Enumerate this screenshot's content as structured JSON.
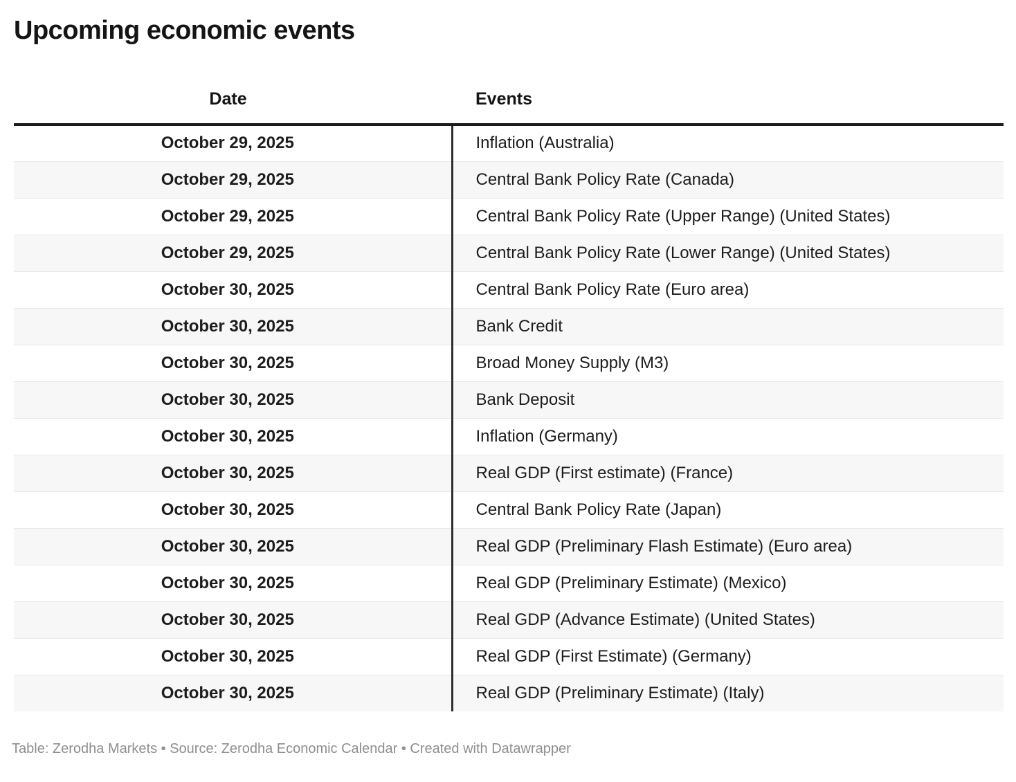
{
  "title": "Upcoming economic events",
  "chart_data": {
    "type": "table",
    "title": "Upcoming economic events",
    "columns": [
      "Date",
      "Events"
    ],
    "rows": [
      [
        "October 29, 2025",
        "Inflation (Australia)"
      ],
      [
        "October 29, 2025",
        "Central Bank Policy Rate (Canada)"
      ],
      [
        "October 29, 2025",
        "Central Bank Policy Rate (Upper Range) (United States)"
      ],
      [
        "October 29, 2025",
        "Central Bank Policy Rate (Lower Range) (United States)"
      ],
      [
        "October 30, 2025",
        "Central Bank Policy Rate (Euro area)"
      ],
      [
        "October 30, 2025",
        "Bank Credit"
      ],
      [
        "October 30, 2025",
        "Broad Money Supply (M3)"
      ],
      [
        "October 30, 2025",
        "Bank Deposit"
      ],
      [
        "October 30, 2025",
        "Inflation (Germany)"
      ],
      [
        "October 30, 2025",
        "Real GDP (First estimate) (France)"
      ],
      [
        "October 30, 2025",
        "Central Bank Policy Rate (Japan)"
      ],
      [
        "October 30, 2025",
        "Real GDP (Preliminary Flash Estimate) (Euro area)"
      ],
      [
        "October 30, 2025",
        "Real GDP (Preliminary Estimate) (Mexico)"
      ],
      [
        "October 30, 2025",
        "Real GDP (Advance Estimate) (United States)"
      ],
      [
        "October 30, 2025",
        "Real GDP (First Estimate) (Germany)"
      ],
      [
        "October 30, 2025",
        "Real GDP (Preliminary Estimate) (Italy)"
      ]
    ],
    "layout": {
      "date_column_align": "center",
      "events_column_align": "left",
      "zebra_striping": true,
      "legend_position": "none"
    }
  },
  "footer": {
    "text": "Table: Zerodha Markets • Source: Zerodha Economic Calendar • Created with Datawrapper"
  },
  "colors": {
    "row_alt_background": "#f7f7f7",
    "header_rule": "#1c1c1c",
    "column_divider": "#2e2e2e",
    "row_divider": "#e8e8e8",
    "text": "#1d1d1d",
    "footer_text": "#8e8e8e",
    "background": "#ffffff"
  }
}
